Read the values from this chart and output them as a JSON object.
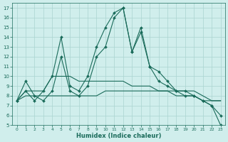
{
  "xlabel": "Humidex (Indice chaleur)",
  "bg_color": "#d0eeec",
  "grid_color": "#aad4d0",
  "line_color": "#1a6b5a",
  "xlim": [
    -0.5,
    23.5
  ],
  "ylim": [
    5,
    17.5
  ],
  "yticks": [
    5,
    6,
    7,
    8,
    9,
    10,
    11,
    12,
    13,
    14,
    15,
    16,
    17
  ],
  "xticks": [
    0,
    1,
    2,
    3,
    4,
    5,
    6,
    7,
    8,
    9,
    10,
    11,
    12,
    13,
    14,
    15,
    16,
    17,
    18,
    19,
    20,
    21,
    22,
    23
  ],
  "series": {
    "main1": {
      "x": [
        0,
        1,
        2,
        3,
        4,
        5,
        6,
        7,
        8,
        9,
        10,
        11,
        12,
        13,
        14,
        15,
        16,
        17,
        18,
        19,
        20,
        21,
        22,
        23
      ],
      "y": [
        7.5,
        9.5,
        8.0,
        7.5,
        8.5,
        12.0,
        8.5,
        8.0,
        9.0,
        12.0,
        13.0,
        16.0,
        17.0,
        12.5,
        15.0,
        11.0,
        10.5,
        9.5,
        8.5,
        8.5,
        8.0,
        7.5,
        7.0,
        6.0
      ],
      "marker": true
    },
    "main2": {
      "x": [
        0,
        1,
        2,
        3,
        4,
        5,
        6,
        7,
        8,
        9,
        10,
        11,
        12,
        13,
        14,
        15,
        16,
        17,
        18,
        19,
        20,
        21,
        22,
        23
      ],
      "y": [
        7.5,
        8.5,
        7.5,
        8.5,
        10.0,
        14.0,
        9.0,
        8.5,
        10.0,
        13.0,
        15.0,
        16.5,
        17.0,
        12.5,
        14.5,
        11.0,
        9.5,
        9.0,
        8.5,
        8.0,
        8.0,
        7.5,
        7.0,
        5.0
      ],
      "marker": true
    },
    "flat1": {
      "x": [
        0,
        1,
        2,
        3,
        4,
        5,
        6,
        7,
        8,
        9,
        10,
        11,
        12,
        13,
        14,
        15,
        16,
        17,
        18,
        19,
        20,
        21,
        22,
        23
      ],
      "y": [
        7.5,
        8.5,
        8.5,
        8.5,
        10.0,
        10.0,
        10.0,
        9.5,
        9.5,
        9.5,
        9.5,
        9.5,
        9.5,
        9.0,
        9.0,
        9.0,
        8.5,
        8.5,
        8.5,
        8.5,
        8.5,
        8.0,
        7.5,
        7.5
      ],
      "marker": false
    },
    "flat2": {
      "x": [
        0,
        1,
        2,
        3,
        4,
        5,
        6,
        7,
        8,
        9,
        10,
        11,
        12,
        13,
        14,
        15,
        16,
        17,
        18,
        19,
        20,
        21,
        22,
        23
      ],
      "y": [
        7.5,
        8.0,
        8.0,
        8.0,
        8.0,
        8.0,
        8.0,
        8.0,
        8.0,
        8.0,
        8.5,
        8.5,
        8.5,
        8.5,
        8.5,
        8.5,
        8.5,
        8.5,
        8.0,
        8.0,
        8.0,
        7.5,
        7.5,
        7.5
      ],
      "marker": false
    }
  }
}
